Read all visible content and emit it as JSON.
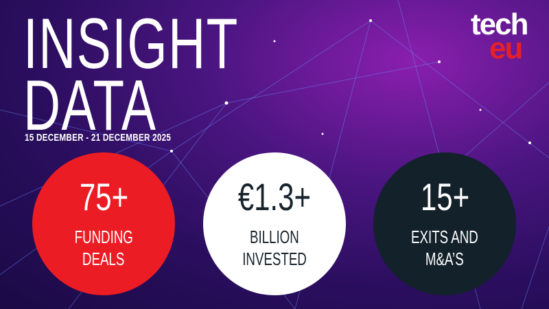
{
  "title": {
    "line1": "INSIGHT",
    "line2": "DATA"
  },
  "date_range": "15 DECEMBER - 21 DECEMBER 2025",
  "logo": {
    "top": "tech",
    "bottom": "eu"
  },
  "stats": [
    {
      "value": "75+",
      "label_line1": "FUNDING",
      "label_line2": "DEALS",
      "color": "#ec1c24"
    },
    {
      "value": "€1.3+",
      "label_line1": "BILLION",
      "label_line2": "INVESTED",
      "color": "#ffffff"
    },
    {
      "value": "15+",
      "label_line1": "EXITS AND",
      "label_line2": "M&A’S",
      "color": "#13212b"
    }
  ]
}
